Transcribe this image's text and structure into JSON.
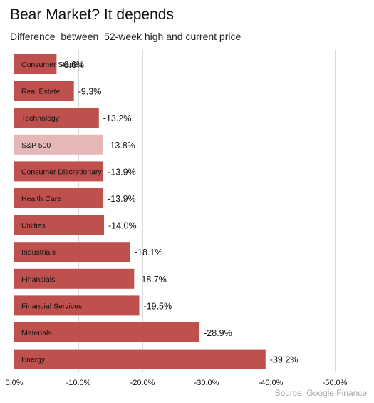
{
  "header": {
    "title": "Bear Market? It depends",
    "subtitle": "Difference  between  52-week high and current price"
  },
  "footer": {
    "source": "Source: Google Finance"
  },
  "colors": {
    "bar": "#c0504d",
    "highlight_bar": "#e5b8b7",
    "gridline": "#d9d9d9",
    "label_text": "#111111",
    "source_text": "#a8a8a8"
  },
  "chart_data": {
    "type": "bar",
    "orientation": "horizontal",
    "title": "Bear Market? It depends",
    "subtitle": "Difference  between  52-week high and current price",
    "categories": [
      "Consumer Staples",
      "Real Estate",
      "Technology",
      "S&P 500",
      "Consumer Discretionary",
      "Health Care",
      "Utilities",
      "Industrials",
      "Financials",
      "Financial Services",
      "Materials",
      "Energy"
    ],
    "values": [
      -6.6,
      -9.3,
      -13.2,
      -13.8,
      -13.9,
      -13.9,
      -14.0,
      -18.1,
      -18.7,
      -19.5,
      -28.9,
      -39.2
    ],
    "value_labels": [
      "-6.6%",
      "-9.3%",
      "-13.2%",
      "-13.8%",
      "-13.9%",
      "-13.9%",
      "-14.0%",
      "-18.1%",
      "-18.7%",
      "-19.5%",
      "-28.9%",
      "-39.2%"
    ],
    "highlight": "S&P 500",
    "xlim": [
      0,
      -50
    ],
    "xticks": [
      0,
      -10,
      -20,
      -30,
      -40,
      -50
    ],
    "xtick_labels": [
      "0.0%",
      "-10.0%",
      "-20.0%",
      "-30.0%",
      "-40.0%",
      "-50.0%"
    ],
    "xlabel": "",
    "ylabel": "",
    "grid": true,
    "legend": "none"
  }
}
